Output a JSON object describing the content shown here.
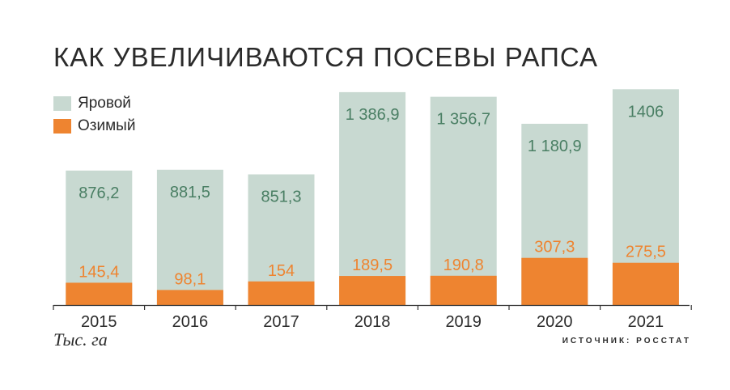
{
  "title": "КАК УВЕЛИЧИВАЮТСЯ ПОСЕВЫ РАПСА",
  "units_note": "Тыс. га",
  "source": "ИСТОЧНИК: РОССТАТ",
  "colors": {
    "spring": "#c8d9d1",
    "winter": "#ee8430",
    "spring_label": "#4a7f64",
    "winter_label": "#ee8430",
    "axis": "#333333"
  },
  "chart_data": {
    "type": "bar",
    "title": "КАК УВЕЛИЧИВАЮТСЯ ПОСЕВЫ РАПСА",
    "xlabel": "",
    "ylabel": "",
    "units": "Тыс. га",
    "categories": [
      "2015",
      "2016",
      "2017",
      "2018",
      "2019",
      "2020",
      "2021"
    ],
    "legend_position": "top-left",
    "grid": false,
    "series": [
      {
        "name": "Яровой",
        "values": [
          876.2,
          881.5,
          851.3,
          1386.9,
          1356.7,
          1180.9,
          1406
        ],
        "labels": [
          "876,2",
          "881,5",
          "851,3",
          "1 386,9",
          "1 356,7",
          "1 180,9",
          "1406"
        ]
      },
      {
        "name": "Озимый",
        "values": [
          145.4,
          98.1,
          154,
          189.5,
          190.8,
          307.3,
          275.5
        ],
        "labels": [
          "145,4",
          "98,1",
          "154",
          "189,5",
          "190,8",
          "307,3",
          "275,5"
        ]
      }
    ]
  }
}
